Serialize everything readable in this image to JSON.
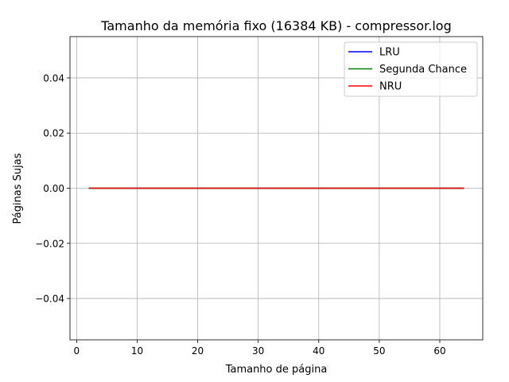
{
  "chart_data": {
    "type": "line",
    "title": "Tamanho da memória fixo (16384 KB) - compressor.log",
    "xlabel": "Tamanho de página",
    "ylabel": "Páginas Sujas",
    "xlim": [
      -1.1,
      67.1
    ],
    "ylim": [
      -0.055,
      0.055
    ],
    "x_ticks": [
      0,
      10,
      20,
      30,
      40,
      50,
      60
    ],
    "x_tick_labels": [
      "0",
      "10",
      "20",
      "30",
      "40",
      "50",
      "60"
    ],
    "y_ticks": [
      -0.04,
      -0.02,
      0.0,
      0.02,
      0.04
    ],
    "y_tick_labels": [
      "−0.04",
      "−0.02",
      "0.00",
      "0.02",
      "0.04"
    ],
    "grid": true,
    "legend_position": "top-right",
    "x": [
      2,
      4,
      8,
      16,
      32,
      64
    ],
    "series": [
      {
        "name": "LRU",
        "color": "#0000ff",
        "values": [
          0,
          0,
          0,
          0,
          0,
          0
        ]
      },
      {
        "name": "Segunda Chance",
        "color": "#008000",
        "values": [
          0,
          0,
          0,
          0,
          0,
          0
        ]
      },
      {
        "name": "NRU",
        "color": "#ff0000",
        "values": [
          0,
          0,
          0,
          0,
          0,
          0
        ]
      }
    ]
  }
}
